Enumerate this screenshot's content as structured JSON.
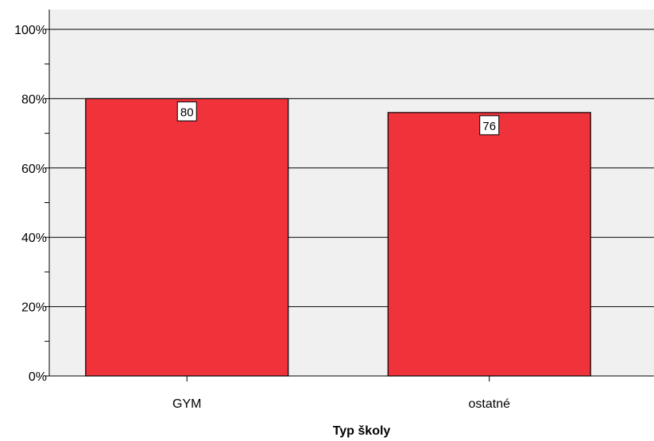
{
  "chart_data": {
    "type": "bar",
    "xlabel": "Typ školy",
    "ylabel": "",
    "categories": [
      "GYM",
      "ostatné"
    ],
    "values": [
      80,
      76
    ],
    "data_labels": [
      "80",
      "76"
    ],
    "ylim": [
      0,
      100
    ],
    "yticks": [
      0,
      20,
      40,
      60,
      80,
      100
    ],
    "ytick_labels": [
      "0%",
      "20%",
      "40%",
      "60%",
      "80%",
      "100%"
    ],
    "grid": true,
    "legend": "none",
    "colors": {
      "bar": "#f0323a",
      "plot_background": "#f0f0f0",
      "gridline": "#000000",
      "label_box": "#ffffff"
    }
  }
}
